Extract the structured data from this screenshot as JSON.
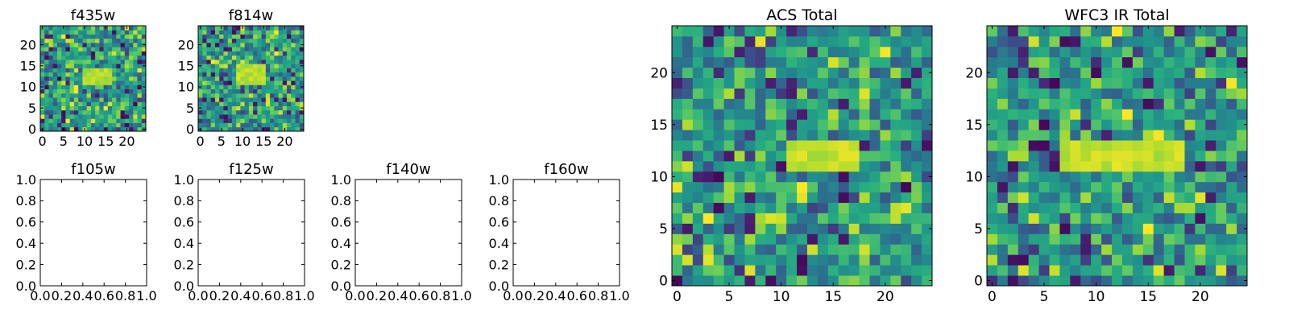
{
  "chart_data": [
    {
      "type": "heatmap",
      "title": "f435w",
      "colormap": "viridis",
      "xlim": [
        -0.5,
        24.5
      ],
      "ylim": [
        -0.5,
        24.5
      ],
      "xticks": [
        0,
        5,
        10,
        15,
        20
      ],
      "yticks": [
        0,
        5,
        10,
        15,
        20
      ],
      "grid": false,
      "seed": 11,
      "feature": {
        "x": [
          10,
          16
        ],
        "y": [
          11,
          14
        ],
        "level": 0.95
      }
    },
    {
      "type": "heatmap",
      "title": "f814w",
      "colormap": "viridis",
      "xlim": [
        -0.5,
        24.5
      ],
      "ylim": [
        -0.5,
        24.5
      ],
      "xticks": [
        0,
        5,
        10,
        15,
        20
      ],
      "yticks": [
        0,
        5,
        10,
        15,
        20
      ],
      "grid": false,
      "seed": 23,
      "feature": {
        "x": [
          9,
          15
        ],
        "y": [
          11,
          15
        ],
        "level": 0.95
      }
    },
    {
      "type": "empty",
      "title": "f105w",
      "xlim": [
        0,
        1
      ],
      "ylim": [
        0,
        1
      ],
      "xticks": [
        "0.0",
        "0.2",
        "0.4",
        "0.6",
        "0.8",
        "1.0"
      ],
      "yticks": [
        "0.0",
        "0.2",
        "0.4",
        "0.6",
        "0.8",
        "1.0"
      ]
    },
    {
      "type": "empty",
      "title": "f125w",
      "xlim": [
        0,
        1
      ],
      "ylim": [
        0,
        1
      ],
      "xticks": [
        "0.0",
        "0.2",
        "0.4",
        "0.6",
        "0.8",
        "1.0"
      ],
      "yticks": [
        "0.0",
        "0.2",
        "0.4",
        "0.6",
        "0.8",
        "1.0"
      ]
    },
    {
      "type": "empty",
      "title": "f140w",
      "xlim": [
        0,
        1
      ],
      "ylim": [
        0,
        1
      ],
      "xticks": [
        "0.0",
        "0.2",
        "0.4",
        "0.6",
        "0.8",
        "1.0"
      ],
      "yticks": [
        "0.0",
        "0.2",
        "0.4",
        "0.6",
        "0.8",
        "1.0"
      ]
    },
    {
      "type": "empty",
      "title": "f160w",
      "xlim": [
        0,
        1
      ],
      "ylim": [
        0,
        1
      ],
      "xticks": [
        "0.0",
        "0.2",
        "0.4",
        "0.6",
        "0.8",
        "1.0"
      ],
      "yticks": [
        "0.0",
        "0.2",
        "0.4",
        "0.6",
        "0.8",
        "1.0"
      ]
    },
    {
      "type": "heatmap",
      "title": "ACS Total",
      "colormap": "viridis",
      "xlim": [
        -0.5,
        24.5
      ],
      "ylim": [
        -0.5,
        24.5
      ],
      "xticks": [
        0,
        5,
        10,
        15,
        20
      ],
      "yticks": [
        0,
        5,
        10,
        15,
        20
      ],
      "grid": false,
      "seed": 37,
      "feature": {
        "x": [
          11,
          17
        ],
        "y": [
          11,
          13
        ],
        "level": 0.97
      }
    },
    {
      "type": "heatmap",
      "title": "WFC3 IR Total",
      "colormap": "viridis",
      "xlim": [
        -0.5,
        24.5
      ],
      "ylim": [
        -0.5,
        24.5
      ],
      "xticks": [
        0,
        5,
        10,
        15,
        20
      ],
      "yticks": [
        0,
        5,
        10,
        15,
        20
      ],
      "grid": false,
      "seed": 53,
      "feature": {
        "x": [
          7,
          18
        ],
        "y": [
          11,
          13
        ],
        "level": 0.97
      }
    }
  ],
  "colors": {
    "axis": "#000000",
    "background": "#ffffff"
  }
}
